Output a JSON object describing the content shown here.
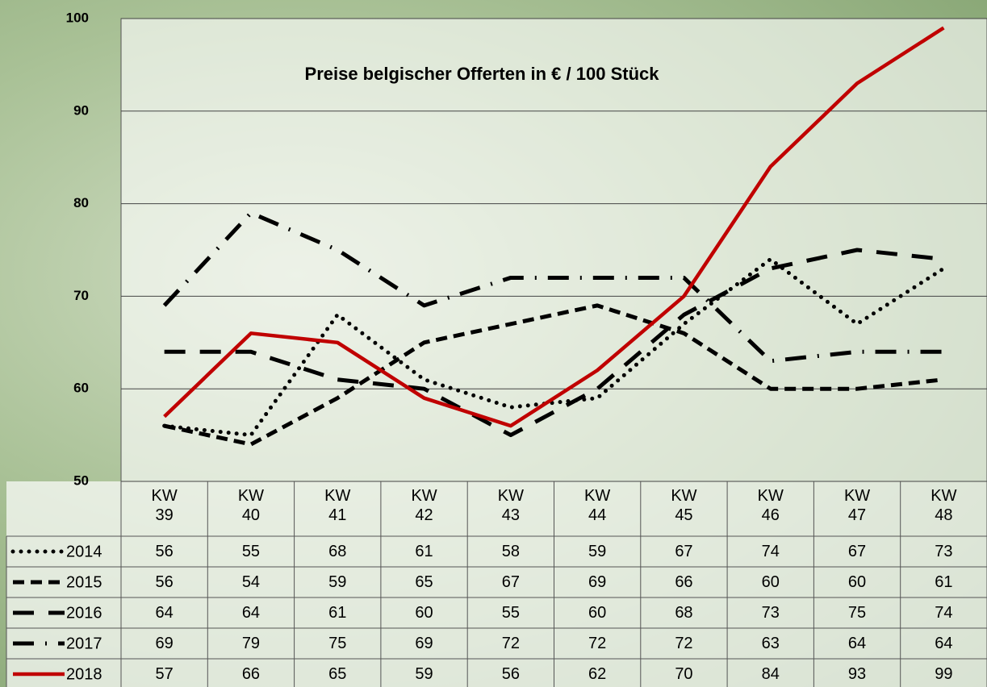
{
  "chart_data": {
    "type": "line",
    "title": "Preise belgischer Offerten in € / 100 Stück",
    "categories": [
      "KW 39",
      "KW 40",
      "KW 41",
      "KW 42",
      "KW 43",
      "KW 44",
      "KW 45",
      "KW 46",
      "KW 47",
      "KW 48"
    ],
    "series": [
      {
        "name": "2014",
        "color": "#000000",
        "style": "dotted",
        "values": [
          56,
          55,
          68,
          61,
          58,
          59,
          67,
          74,
          67,
          73
        ]
      },
      {
        "name": "2015",
        "color": "#000000",
        "style": "dashed",
        "values": [
          56,
          54,
          59,
          65,
          67,
          69,
          66,
          60,
          60,
          61
        ]
      },
      {
        "name": "2016",
        "color": "#000000",
        "style": "long-dash",
        "values": [
          64,
          64,
          61,
          60,
          55,
          60,
          68,
          73,
          75,
          74
        ]
      },
      {
        "name": "2017",
        "color": "#000000",
        "style": "dash-dot",
        "values": [
          69,
          79,
          75,
          69,
          72,
          72,
          72,
          63,
          64,
          64
        ]
      },
      {
        "name": "2018",
        "color": "#c00000",
        "style": "solid",
        "values": [
          57,
          66,
          65,
          59,
          56,
          62,
          70,
          84,
          93,
          99
        ]
      }
    ],
    "ylim": [
      50,
      100
    ],
    "yticks": [
      50,
      60,
      70,
      80,
      90,
      100
    ],
    "grid": true
  }
}
